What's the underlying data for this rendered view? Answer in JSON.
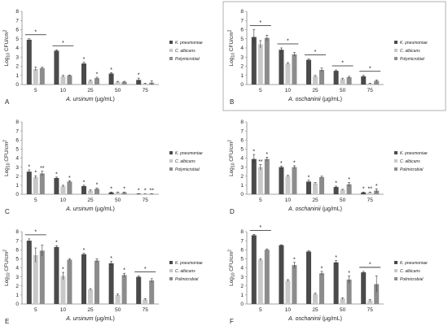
{
  "colors": {
    "k_pneumoniae": "#4a4a4a",
    "c_albicans": "#c8c8c8",
    "polymicrobial": "#8c8c8c",
    "axis": "#888888",
    "panel_border": "#b0b0b0"
  },
  "chart_data": [
    {
      "panel": "A",
      "type": "bar",
      "ylabel": "Log10 CFU/cm2",
      "xlabel": "A. ursinum (µg/mL)",
      "categories": [
        "5",
        "10",
        "25",
        "50",
        "75"
      ],
      "ylim": [
        0,
        8
      ],
      "yticks": [
        "0",
        "1",
        "2",
        "3",
        "4",
        "5",
        "6",
        "7",
        "8"
      ],
      "legend": [
        "K. pneumoniae",
        "C. albicans",
        "Polymicrobial"
      ],
      "series": [
        {
          "name": "K. pneumoniae",
          "values": [
            4.9,
            3.7,
            2.3,
            1.2,
            0.5
          ],
          "errors": [
            0.1,
            0.1,
            0.15,
            0.1,
            0.2
          ],
          "stars": [
            0,
            0,
            1,
            1,
            1
          ]
        },
        {
          "name": "C. albicans",
          "values": [
            1.7,
            0.9,
            0.4,
            0.3,
            0.1
          ],
          "errors": [
            0.2,
            0.1,
            0.1,
            0.05,
            0.05
          ],
          "stars": [
            0,
            0,
            0,
            0,
            0
          ]
        },
        {
          "name": "Polymicrobial",
          "values": [
            1.8,
            1.0,
            0.7,
            0.3,
            0.2
          ],
          "errors": [
            0.1,
            0.05,
            0.1,
            0.05,
            0.2
          ],
          "stars": [
            0,
            0,
            1,
            0,
            0
          ]
        }
      ],
      "brackets": [
        [
          0,
          0,
          2
        ],
        [
          1,
          0,
          2
        ]
      ]
    },
    {
      "panel": "B",
      "type": "bar",
      "ylabel": "Log10 CFU/cm2",
      "xlabel": "A. oschaninii (µg/mL)",
      "categories": [
        "5",
        "10",
        "25",
        "50",
        "75"
      ],
      "ylim": [
        0,
        8
      ],
      "yticks": [
        "0",
        "1",
        "2",
        "3",
        "4",
        "5",
        "6",
        "7",
        "8"
      ],
      "legend": [
        "K. pneumoniae",
        "C. albicans",
        "Polymicrobial"
      ],
      "series": [
        {
          "name": "K. pneumoniae",
          "values": [
            5.2,
            3.8,
            2.7,
            1.5,
            0.9
          ],
          "errors": [
            0.8,
            0.2,
            0.1,
            0.1,
            0.1
          ],
          "stars": [
            0,
            0,
            0,
            0,
            0
          ]
        },
        {
          "name": "C. albicans",
          "values": [
            4.4,
            2.3,
            0.9,
            0.6,
            0.1
          ],
          "errors": [
            0.4,
            0.1,
            0.1,
            0.1,
            0.05
          ],
          "stars": [
            0,
            0,
            0,
            0,
            0
          ]
        },
        {
          "name": "Polymicrobial",
          "values": [
            5.1,
            3.3,
            1.6,
            0.8,
            0.4
          ],
          "errors": [
            0.3,
            0.2,
            0.2,
            0.1,
            0.1
          ],
          "stars": [
            0,
            0,
            0,
            0,
            0
          ]
        }
      ],
      "brackets": [
        [
          0,
          0,
          2
        ],
        [
          1,
          0,
          2
        ],
        [
          2,
          0,
          2
        ],
        [
          3,
          0,
          2
        ],
        [
          4,
          0,
          2
        ]
      ]
    },
    {
      "panel": "C",
      "type": "bar",
      "ylabel": "Log10 CFU/cm2",
      "xlabel": "A. ursinum (µg/mL)",
      "categories": [
        "5",
        "10",
        "25",
        "50",
        "75"
      ],
      "ylim": [
        0,
        8
      ],
      "yticks": [
        "0",
        "1",
        "2",
        "3",
        "4",
        "5",
        "6",
        "7",
        "8"
      ],
      "legend": [
        "K. pneumoniae",
        "C. albicans",
        "Polymicrobial"
      ],
      "series": [
        {
          "name": "K. pneumoniae",
          "values": [
            2.5,
            1.8,
            0.9,
            0.2,
            0.05
          ],
          "errors": [
            0.2,
            0.1,
            0.1,
            0.05,
            0.02
          ],
          "stars": [
            1,
            1,
            1,
            1,
            1
          ]
        },
        {
          "name": "C. albicans",
          "values": [
            1.9,
            0.9,
            0.4,
            0.2,
            0.05
          ],
          "errors": [
            0.15,
            0.1,
            0.1,
            0.05,
            0.02
          ],
          "stars": [
            1,
            0,
            0,
            0,
            1
          ]
        },
        {
          "name": "Polymicrobial",
          "values": [
            2.3,
            1.4,
            0.6,
            0.2,
            0.05
          ],
          "errors": [
            0.25,
            0.1,
            0.1,
            0.05,
            0.02
          ],
          "stars": [
            2,
            1,
            1,
            1,
            2
          ]
        }
      ],
      "brackets": []
    },
    {
      "panel": "D",
      "type": "bar",
      "ylabel": "Log10 CFU/cm2",
      "xlabel": "A. oschaninii (µg/mL)",
      "categories": [
        "5",
        "10",
        "25",
        "50",
        "75"
      ],
      "ylim": [
        0,
        8
      ],
      "yticks": [
        "0",
        "1",
        "2",
        "3",
        "4",
        "5",
        "6",
        "7",
        "8"
      ],
      "legend": [
        "K. pneumoniae",
        "C. albicans",
        "Polimicrobial"
      ],
      "series": [
        {
          "name": "K. pneumoniae",
          "values": [
            3.9,
            3.0,
            1.4,
            0.8,
            0.2
          ],
          "errors": [
            0.5,
            0.1,
            0.15,
            0.1,
            0.05
          ],
          "stars": [
            1,
            1,
            1,
            1,
            1
          ]
        },
        {
          "name": "C. albicans",
          "values": [
            3.0,
            2.0,
            1.2,
            0.5,
            0.2
          ],
          "errors": [
            0.3,
            0.1,
            0.1,
            0.05,
            0.05
          ],
          "stars": [
            2,
            0,
            0,
            0,
            2
          ]
        },
        {
          "name": "Polimicrobial",
          "values": [
            3.9,
            3.0,
            1.9,
            1.1,
            0.4
          ],
          "errors": [
            0.2,
            0.15,
            0.1,
            0.2,
            0.2
          ],
          "stars": [
            1,
            1,
            0,
            1,
            1
          ]
        }
      ],
      "brackets": []
    },
    {
      "panel": "E",
      "type": "bar",
      "ylabel": "Log10 CFU/cm2",
      "xlabel": "A. ursinum (µg/mL)",
      "categories": [
        "5",
        "10",
        "25",
        "50",
        "75"
      ],
      "ylim": [
        0,
        8
      ],
      "yticks": [
        "0",
        "1",
        "2",
        "3",
        "4",
        "5",
        "6",
        "7",
        "8"
      ],
      "legend": [
        "K. pneumoniae",
        "C. albicans",
        "Polimicrobial"
      ],
      "series": [
        {
          "name": "K. pneumoniae",
          "values": [
            7.0,
            6.3,
            5.5,
            4.5,
            3.0
          ],
          "errors": [
            0.2,
            0.15,
            0.1,
            0.2,
            0.1
          ],
          "stars": [
            0,
            1,
            1,
            1,
            0
          ]
        },
        {
          "name": "C. albicans",
          "values": [
            5.4,
            3.1,
            1.6,
            1.0,
            0.5
          ],
          "errors": [
            0.8,
            0.4,
            0.1,
            0.1,
            0.1
          ],
          "stars": [
            0,
            1,
            0,
            0,
            0
          ]
        },
        {
          "name": "Polimicrobial",
          "values": [
            5.9,
            4.9,
            4.8,
            3.2,
            2.6
          ],
          "errors": [
            0.6,
            0.1,
            0.2,
            0.2,
            0.2
          ],
          "stars": [
            0,
            0,
            0,
            1,
            0
          ]
        }
      ],
      "brackets": [
        [
          0,
          0,
          2
        ],
        [
          4,
          0,
          2
        ]
      ]
    },
    {
      "panel": "F",
      "type": "bar",
      "ylabel": "Log10 CFU/cm2",
      "xlabel": "A. oschaninii (µg/mL)",
      "categories": [
        "5",
        "10",
        "25",
        "50",
        "75"
      ],
      "ylim": [
        0,
        8
      ],
      "yticks": [
        "0",
        "1",
        "2",
        "3",
        "4",
        "5",
        "6",
        "7",
        "8"
      ],
      "legend": [
        "K. pneumoniae",
        "C. albicans",
        "Polimicrobial"
      ],
      "series": [
        {
          "name": "K. pneumoniae",
          "values": [
            7.6,
            6.5,
            5.8,
            4.6,
            3.5
          ],
          "errors": [
            0.1,
            0.05,
            0.1,
            0.2,
            0.1
          ],
          "stars": [
            0,
            0,
            0,
            1,
            0
          ]
        },
        {
          "name": "C. albicans",
          "values": [
            4.9,
            2.6,
            1.1,
            0.6,
            0.4
          ],
          "errors": [
            0.1,
            0.1,
            0.1,
            0.1,
            0.1
          ],
          "stars": [
            0,
            0,
            0,
            0,
            0
          ]
        },
        {
          "name": "Polimicrobial",
          "values": [
            6.0,
            4.3,
            3.4,
            2.7,
            2.2
          ],
          "errors": [
            0.1,
            0.3,
            0.2,
            0.4,
            0.9
          ],
          "stars": [
            0,
            1,
            1,
            1,
            0
          ]
        }
      ],
      "brackets": [
        [
          0,
          0,
          2
        ],
        [
          4,
          0,
          2
        ]
      ]
    }
  ]
}
